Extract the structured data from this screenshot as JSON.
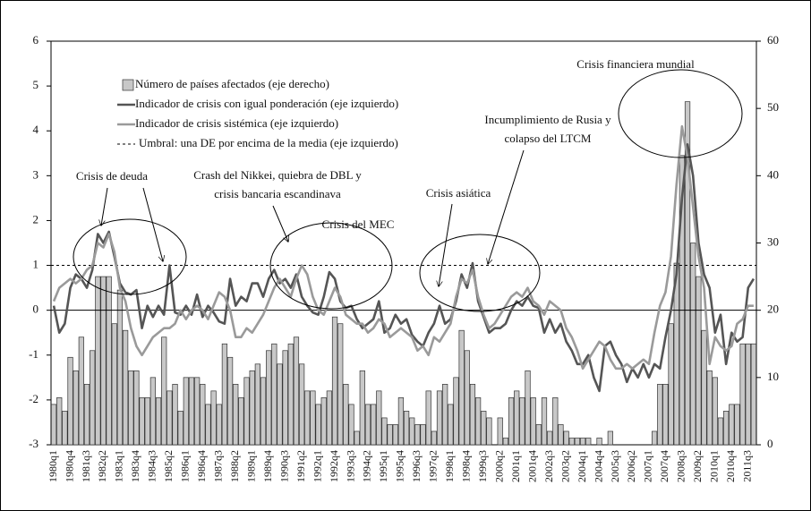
{
  "chart_data": {
    "type": "bar-line",
    "categories": [
      "1980q1",
      null,
      null,
      "1980q4",
      null,
      null,
      "1981q3",
      null,
      null,
      "1982q2",
      null,
      null,
      "1983q1",
      null,
      null,
      "1983q4",
      null,
      null,
      "1984q3",
      null,
      null,
      "1985q2",
      null,
      null,
      "1986q1",
      null,
      null,
      "1986q4",
      null,
      null,
      "1987q3",
      null,
      null,
      "1988q2",
      null,
      null,
      "1989q1",
      null,
      null,
      "1989q4",
      null,
      null,
      "1990q3",
      null,
      null,
      "1991q2",
      null,
      null,
      "1992q1",
      null,
      null,
      "1992q4",
      null,
      null,
      "1993q3",
      null,
      null,
      "1994q2",
      null,
      null,
      "1995q1",
      null,
      null,
      "1995q4",
      null,
      null,
      "1996q3",
      null,
      null,
      "1997q2",
      null,
      null,
      "1998q1",
      null,
      null,
      "1998q4",
      null,
      null,
      "1999q3",
      null,
      null,
      "2000q2",
      null,
      null,
      "2001q1",
      null,
      null,
      "2001q4",
      null,
      null,
      "2002q3",
      null,
      null,
      "2003q2",
      null,
      null,
      "2004q1",
      null,
      null,
      "2004q4",
      null,
      null,
      "2005q3",
      null,
      null,
      "2006q2",
      null,
      null,
      "2007q1",
      null,
      null,
      "2007q4",
      null,
      null,
      "2008q3",
      null,
      null,
      "2009q2",
      null,
      null,
      "2010q1",
      null,
      null,
      "2010q4",
      null,
      null,
      "2011q3",
      null
    ],
    "series": [
      {
        "name": "Número de países afectados (eje derecho)",
        "color": "#c8c8c8",
        "axis": "y2",
        "type": "bar",
        "values": [
          6,
          7,
          5,
          13,
          11,
          16,
          9,
          14,
          25,
          25,
          25,
          18,
          23,
          17,
          11,
          11,
          7,
          7,
          10,
          7,
          16,
          8,
          9,
          5,
          10,
          10,
          10,
          9,
          6,
          8,
          6,
          15,
          13,
          9,
          7,
          10,
          11,
          12,
          10,
          14,
          15,
          12,
          14,
          15,
          16,
          12,
          8,
          8,
          6,
          7,
          8,
          19,
          18,
          9,
          6,
          2,
          11,
          6,
          6,
          8,
          4,
          3,
          3,
          7,
          5,
          4,
          3,
          3,
          8,
          2,
          8,
          9,
          6,
          10,
          17,
          14,
          9,
          7,
          5,
          4,
          0,
          4,
          1,
          7,
          8,
          7,
          11,
          7,
          3,
          7,
          2,
          7,
          3,
          2,
          1,
          1,
          1,
          1,
          0,
          1,
          0,
          2,
          0,
          0,
          0,
          0,
          0,
          0,
          0,
          2,
          9,
          9,
          18,
          27,
          43,
          51,
          30,
          25,
          17,
          11,
          10,
          4,
          5,
          6,
          6,
          15,
          15,
          15
        ]
      },
      {
        "name": "Indicador de crisis con igual ponderación (eje izquierdo)",
        "color": "#555555",
        "type": "line",
        "values": [
          0.1,
          -0.5,
          -0.3,
          0.5,
          0.8,
          0.7,
          0.5,
          0.9,
          1.7,
          1.5,
          1.75,
          1.2,
          0.6,
          0.4,
          0.35,
          0.45,
          -0.4,
          0.1,
          -0.15,
          0.1,
          -0.1,
          1.0,
          -0.05,
          -0.1,
          0.1,
          -0.1,
          0.35,
          -0.15,
          0.1,
          -0.05,
          -0.25,
          -0.3,
          0.7,
          0.1,
          0.3,
          0.2,
          0.6,
          0.6,
          0.3,
          0.7,
          0.9,
          0.6,
          0.7,
          0.5,
          0.8,
          0.3,
          0.1,
          -0.05,
          -0.1,
          0.3,
          0.85,
          0.7,
          0.2,
          0.05,
          0.1,
          -0.2,
          -0.4,
          -0.3,
          -0.2,
          0.2,
          -0.5,
          -0.4,
          -0.1,
          -0.3,
          -0.2,
          -0.55,
          -0.7,
          -0.8,
          -0.5,
          -0.3,
          0.1,
          -0.3,
          -0.2,
          0.2,
          0.8,
          0.5,
          1.05,
          0.2,
          -0.15,
          -0.5,
          -0.4,
          -0.4,
          -0.3,
          0.0,
          0.2,
          0.1,
          0.3,
          0.1,
          0.05,
          -0.5,
          -0.2,
          -0.5,
          -0.3,
          -0.7,
          -0.9,
          -1.2,
          -1.2,
          -1.0,
          -1.5,
          -1.8,
          -0.8,
          -0.7,
          -1.0,
          -1.2,
          -1.6,
          -1.3,
          -1.5,
          -1.2,
          -1.5,
          -1.2,
          -1.3,
          -0.6,
          0.0,
          0.8,
          2.5,
          3.7,
          3.0,
          1.5,
          0.8,
          0.5,
          -0.5,
          -0.1,
          -1.2,
          -0.5,
          -0.7,
          -0.6,
          0.5,
          0.7
        ]
      },
      {
        "name": "Indicador de crisis sistémica (eje izquierdo)",
        "color": "#9a9a9a",
        "type": "line",
        "values": [
          0.2,
          0.5,
          0.6,
          0.7,
          0.6,
          0.7,
          0.9,
          1.0,
          1.5,
          1.4,
          1.7,
          1.3,
          0.5,
          0.2,
          -0.4,
          -0.8,
          -1.0,
          -0.8,
          -0.6,
          -0.5,
          -0.4,
          -0.4,
          -0.3,
          0.0,
          -0.2,
          0.0,
          0.1,
          0.0,
          -0.2,
          0.1,
          0.4,
          0.3,
          0.0,
          -0.6,
          -0.6,
          -0.4,
          -0.5,
          -0.3,
          -0.1,
          0.2,
          0.5,
          0.7,
          0.5,
          0.3,
          0.7,
          1.0,
          0.8,
          0.3,
          0.0,
          -0.1,
          0.2,
          0.5,
          0.3,
          -0.1,
          -0.2,
          -0.3,
          -0.3,
          -0.5,
          -0.4,
          -0.2,
          -0.3,
          -0.6,
          -0.5,
          -0.4,
          -0.5,
          -0.6,
          -0.9,
          -0.8,
          -1.0,
          -0.6,
          -0.7,
          -0.5,
          -0.3,
          0.3,
          0.7,
          0.6,
          0.9,
          0.3,
          -0.1,
          -0.4,
          -0.3,
          -0.1,
          0.1,
          0.3,
          0.4,
          0.3,
          0.5,
          0.2,
          0.1,
          -0.1,
          0.2,
          0.1,
          0.0,
          -0.4,
          -0.6,
          -0.9,
          -1.3,
          -1.1,
          -0.9,
          -0.7,
          -0.8,
          -1.1,
          -1.3,
          -1.3,
          -1.2,
          -1.3,
          -1.2,
          -1.1,
          -1.2,
          -0.5,
          0.1,
          0.4,
          1.2,
          2.8,
          4.1,
          3.4,
          2.3,
          1.2,
          0.5,
          -1.2,
          -0.6,
          -0.8,
          -0.9,
          -0.8,
          -0.3,
          -0.2,
          0.1,
          0.1
        ]
      }
    ],
    "threshold": {
      "name": "Umbral: una DE por encima de la media (eje izquierdo)",
      "value": 1,
      "color": "#000000"
    },
    "ylim": [
      -3,
      6
    ],
    "yticks": [
      -3,
      -2,
      -1,
      0,
      1,
      2,
      3,
      4,
      5,
      6
    ],
    "y2lim": [
      0,
      60
    ],
    "y2ticks": [
      0,
      10,
      20,
      30,
      40,
      50,
      60
    ],
    "annotations": [
      {
        "lines": [
          "Crisis de deuda"
        ]
      },
      {
        "lines": [
          "Crash del Nikkei, quiebra de DBL y",
          "crisis bancaria escandinava"
        ]
      },
      {
        "lines": [
          "Crisis del MEC"
        ]
      },
      {
        "lines": [
          "Crisis asiática"
        ]
      },
      {
        "lines": [
          "Incumplimiento de Rusia y",
          "colapso del LTCM"
        ]
      },
      {
        "lines": [
          "Crisis financiera mundial"
        ]
      }
    ]
  }
}
